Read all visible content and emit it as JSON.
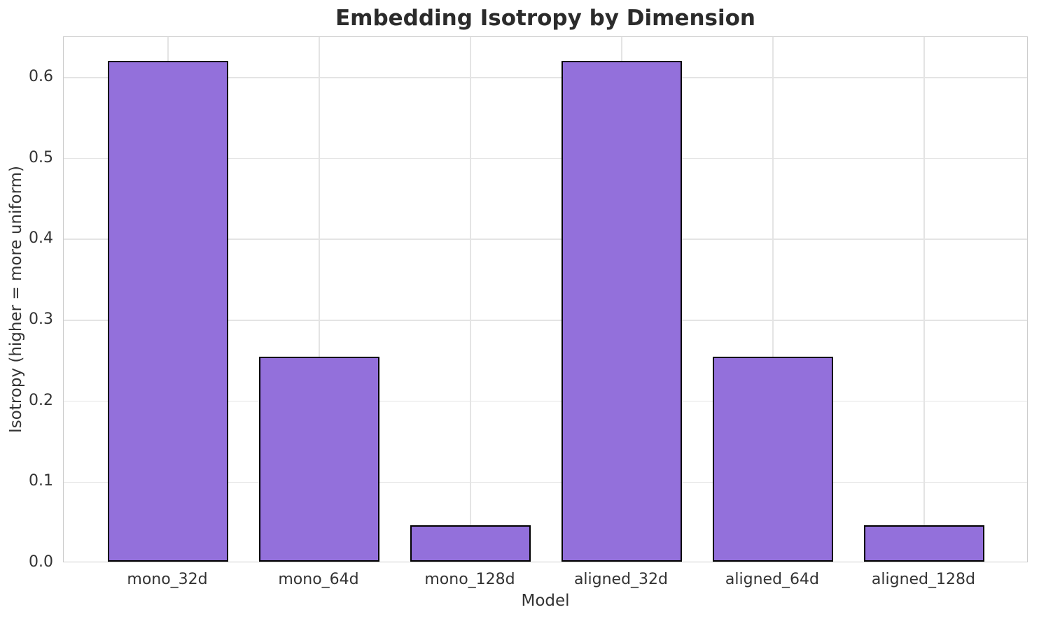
{
  "chart_data": {
    "type": "bar",
    "title": "Embedding Isotropy by Dimension",
    "xlabel": "Model",
    "ylabel": "Isotropy (higher = more uniform)",
    "categories": [
      "mono_32d",
      "mono_64d",
      "mono_128d",
      "aligned_32d",
      "aligned_64d",
      "aligned_128d"
    ],
    "values": [
      0.619,
      0.253,
      0.045,
      0.619,
      0.253,
      0.045
    ],
    "ylim": [
      0,
      0.65
    ],
    "yticks": [
      0.0,
      0.1,
      0.2,
      0.3,
      0.4,
      0.5,
      0.6
    ],
    "ytick_labels": [
      "0.0",
      "0.1",
      "0.2",
      "0.3",
      "0.4",
      "0.5",
      "0.6"
    ],
    "xlim": [
      -0.69,
      5.69
    ],
    "bar_width_frac": 0.8,
    "grid": true,
    "legend": null,
    "colors": {
      "bar_fill": "#9370DB",
      "bar_edge": "#000000",
      "gridline": "#e4e4e4",
      "spine": "#cccccc",
      "text": "#333333",
      "title_text": "#2b2b2b",
      "background": "#ffffff"
    }
  }
}
